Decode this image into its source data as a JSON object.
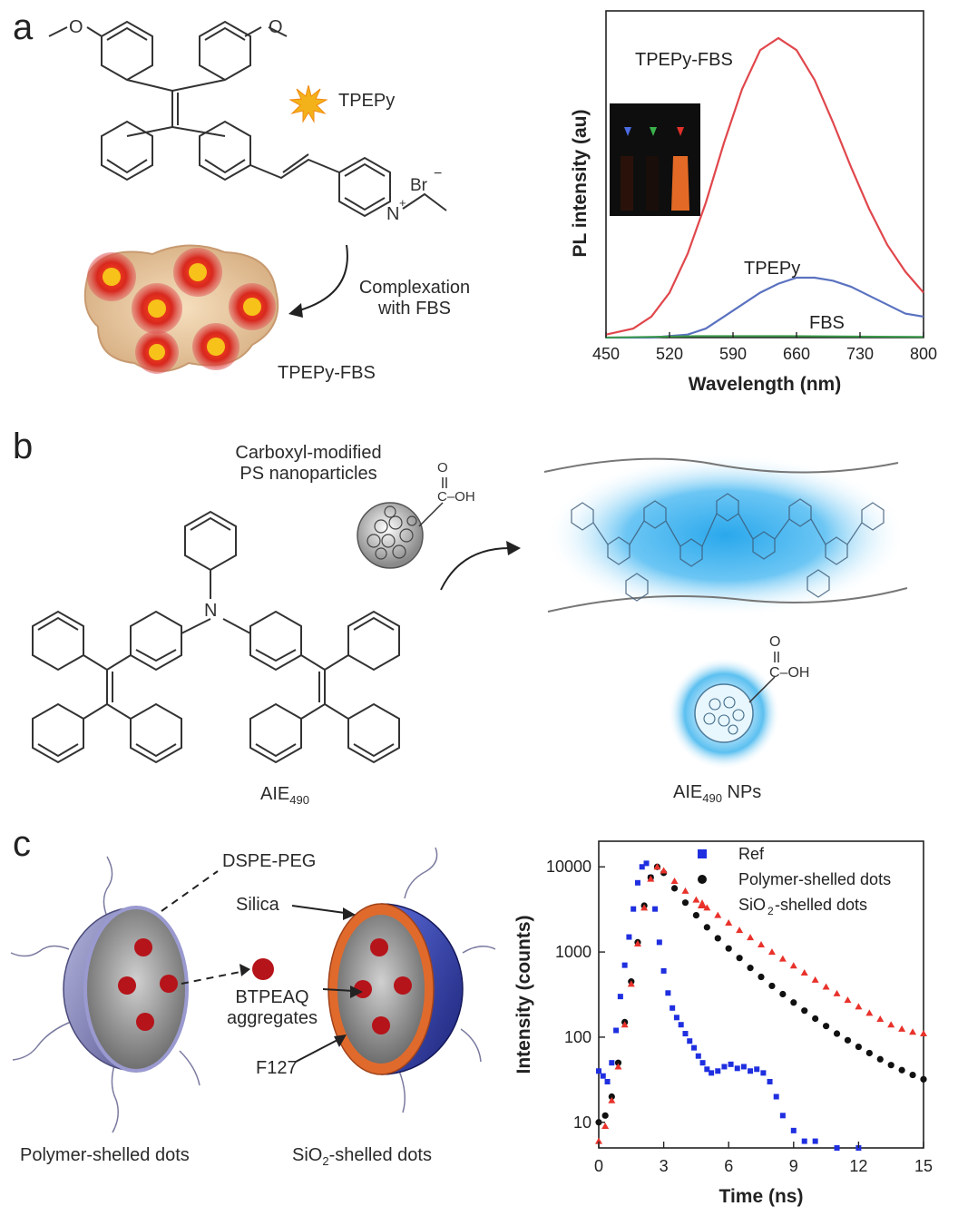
{
  "panel_a": {
    "letter": "a",
    "molecule_label": "TPEPy",
    "counter_ion": "Br",
    "charge_minus": "−",
    "n_plus": "N",
    "plus": "+",
    "complex_label": "TPEPy-FBS",
    "arrow_label_line1": "Complexation",
    "arrow_label_line2": "with FBS",
    "methoxy_left": "O",
    "methoxy_right": "O"
  },
  "panel_b": {
    "letter": "b",
    "np_label_line1": "Carboxyl-modified",
    "np_label_line2": "PS nanoparticles",
    "cooh_o": "O",
    "cooh_c": "C–OH",
    "amine_n": "N",
    "aie_label": "AIE",
    "aie_sub": "490",
    "aie_np_label": "AIE",
    "aie_np_sub": "490",
    "aie_np_suffix": " NPs"
  },
  "panel_c": {
    "letter": "c",
    "label_dspe": "DSPE-PEG",
    "label_silica": "Silica",
    "label_btpeaq_1": "BTPEAQ",
    "label_btpeaq_2": "aggregates",
    "label_f127": "F127",
    "caption_left": "Polymer-shelled dots",
    "caption_right_pre": "SiO",
    "caption_right_sub": "2",
    "caption_right_post": "-shelled dots"
  },
  "colors": {
    "red_curve": "#e0474c",
    "blue_curve": "#5a72c0",
    "green_curve": "#3a9a4a",
    "ref_blue": "#1f2fe0",
    "black": "#111111",
    "sio2_red": "#e8322b",
    "glow_blue": "#3ab4ee",
    "shell_purple": "#7a7ab8",
    "shell_blue": "#2b3a9a",
    "orange_ring": "#e0682a"
  },
  "chart_data": [
    {
      "type": "line",
      "title": "",
      "xlabel": "Wavelength (nm)",
      "ylabel": "PL intensity (au)",
      "xlim": [
        450,
        800
      ],
      "x_ticks": [
        "450",
        "520",
        "590",
        "660",
        "730",
        "800"
      ],
      "y_ticks_shown": false,
      "inset": "photo of three vials with blue, green and red markers; right vial glows orange",
      "series": [
        {
          "name": "TPEPy-FBS",
          "x": [
            450,
            480,
            500,
            520,
            540,
            560,
            580,
            600,
            620,
            640,
            660,
            680,
            700,
            720,
            740,
            760,
            780,
            800
          ],
          "y": [
            0.01,
            0.03,
            0.07,
            0.15,
            0.28,
            0.45,
            0.65,
            0.83,
            0.96,
            1.0,
            0.96,
            0.86,
            0.72,
            0.57,
            0.43,
            0.31,
            0.22,
            0.15
          ]
        },
        {
          "name": "TPEPy",
          "x": [
            450,
            500,
            540,
            560,
            580,
            600,
            620,
            640,
            660,
            680,
            700,
            720,
            740,
            760,
            780,
            800
          ],
          "y": [
            0.0,
            0.0,
            0.01,
            0.03,
            0.07,
            0.11,
            0.15,
            0.18,
            0.2,
            0.2,
            0.19,
            0.17,
            0.14,
            0.11,
            0.08,
            0.07
          ]
        },
        {
          "name": "FBS",
          "x": [
            450,
            550,
            650,
            750,
            800
          ],
          "y": [
            0.0,
            0.005,
            0.005,
            0.003,
            0.002
          ]
        }
      ]
    },
    {
      "type": "scatter",
      "title": "",
      "xlabel": "Time (ns)",
      "ylabel": "Intensity (counts)",
      "xlim": [
        0,
        15
      ],
      "ylim": [
        5,
        20000
      ],
      "yscale": "log",
      "x_ticks": [
        "0",
        "3",
        "6",
        "9",
        "12",
        "15"
      ],
      "y_ticks": [
        "10",
        "100",
        "1000",
        "10000"
      ],
      "legend_position": "top-right",
      "series": [
        {
          "name": "Ref",
          "x": [
            0.0,
            0.2,
            0.4,
            0.6,
            0.8,
            1.0,
            1.2,
            1.4,
            1.6,
            1.8,
            2.0,
            2.2,
            2.4,
            2.6,
            2.8,
            3.0,
            3.2,
            3.4,
            3.6,
            3.8,
            4.0,
            4.2,
            4.4,
            4.6,
            4.8,
            5.0,
            5.2,
            5.5,
            5.8,
            6.1,
            6.4,
            6.7,
            7.0,
            7.3,
            7.6,
            7.9,
            8.2,
            8.5,
            9.0,
            9.5,
            10.0,
            11.0,
            12.0
          ],
          "y": [
            40,
            35,
            30,
            50,
            120,
            300,
            700,
            1500,
            3200,
            6500,
            10000,
            11000,
            7500,
            3200,
            1300,
            600,
            330,
            220,
            170,
            140,
            110,
            90,
            75,
            60,
            50,
            42,
            38,
            40,
            45,
            48,
            43,
            45,
            40,
            42,
            38,
            30,
            20,
            12,
            8,
            6,
            6,
            5,
            5
          ]
        },
        {
          "name": "Polymer-shelled dots",
          "x": [
            0.0,
            0.3,
            0.6,
            0.9,
            1.2,
            1.5,
            1.8,
            2.1,
            2.4,
            2.7,
            3.0,
            3.5,
            4.0,
            4.5,
            5.0,
            5.5,
            6.0,
            6.5,
            7.0,
            7.5,
            8.0,
            8.5,
            9.0,
            9.5,
            10.0,
            10.5,
            11.0,
            11.5,
            12.0,
            12.5,
            13.0,
            13.5,
            14.0,
            14.5,
            15.0
          ],
          "y": [
            10,
            12,
            20,
            50,
            150,
            450,
            1300,
            3500,
            7500,
            10000,
            8500,
            5600,
            3800,
            2700,
            1950,
            1450,
            1100,
            850,
            650,
            510,
            400,
            320,
            255,
            205,
            165,
            135,
            110,
            92,
            77,
            65,
            55,
            47,
            41,
            36,
            32
          ]
        },
        {
          "name": "SiO2-shelled dots",
          "x": [
            0.0,
            0.3,
            0.6,
            0.9,
            1.2,
            1.5,
            1.8,
            2.1,
            2.4,
            2.7,
            3.0,
            3.5,
            4.0,
            4.5,
            5.0,
            5.5,
            6.0,
            6.5,
            7.0,
            7.5,
            8.0,
            8.5,
            9.0,
            9.5,
            10.0,
            10.5,
            11.0,
            11.5,
            12.0,
            12.5,
            13.0,
            13.5,
            14.0,
            14.5,
            15.0
          ],
          "y": [
            6,
            9,
            18,
            45,
            140,
            420,
            1250,
            3300,
            7200,
            10000,
            9000,
            6800,
            5200,
            4100,
            3300,
            2700,
            2200,
            1800,
            1480,
            1220,
            1000,
            830,
            690,
            570,
            470,
            390,
            325,
            272,
            228,
            192,
            163,
            140,
            125,
            115,
            110
          ]
        }
      ]
    }
  ]
}
